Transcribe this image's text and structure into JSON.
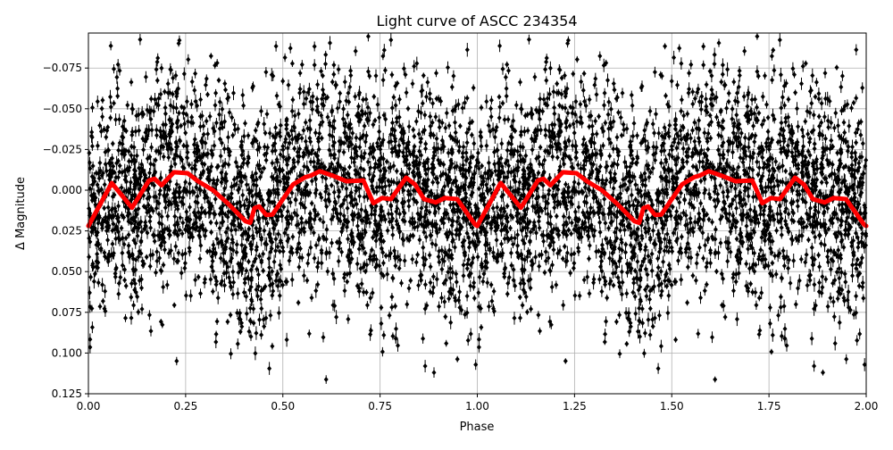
{
  "chart_data": {
    "type": "scatter",
    "title": "Light curve of ASCC 234354",
    "xlabel": "Phase",
    "ylabel": "Δ Magnitude",
    "xlim": [
      0,
      2
    ],
    "ylim": [
      0.125,
      -0.0965
    ],
    "y_inverted": true,
    "grid": true,
    "x_ticks": [
      "0.00",
      "0.25",
      "0.50",
      "0.75",
      "1.00",
      "1.25",
      "1.50",
      "1.75",
      "2.00"
    ],
    "x_tick_values": [
      0,
      0.25,
      0.5,
      0.75,
      1,
      1.25,
      1.5,
      1.75,
      2
    ],
    "y_ticks": [
      "−0.075",
      "−0.050",
      "−0.025",
      "0.000",
      "0.025",
      "0.050",
      "0.075",
      "0.100",
      "0.125"
    ],
    "y_tick_values": [
      -0.075,
      -0.05,
      -0.025,
      0,
      0.025,
      0.05,
      0.075,
      0.1,
      0.125
    ],
    "colors": {
      "points": "#000000",
      "model": "#ff0000",
      "grid": "#b0b0b0"
    },
    "observations": {
      "marker": "diamond",
      "error_bars": true,
      "scatter_around_model": 0.04
    },
    "model_curve": {
      "x": [
        0,
        0.06,
        0.112,
        0.156,
        0.17,
        0.188,
        0.22,
        0.255,
        0.282,
        0.32,
        0.358,
        0.404,
        0.416,
        0.427,
        0.439,
        0.457,
        0.473,
        0.526,
        0.558,
        0.572,
        0.595,
        0.627,
        0.664,
        0.707,
        0.733,
        0.755,
        0.778,
        0.817,
        0.84,
        0.863,
        0.893,
        0.916,
        0.948,
        0.994,
        1,
        1.06,
        1.112,
        1.156,
        1.17,
        1.188,
        1.22,
        1.255,
        1.282,
        1.32,
        1.358,
        1.404,
        1.416,
        1.427,
        1.439,
        1.457,
        1.473,
        1.526,
        1.558,
        1.572,
        1.595,
        1.627,
        1.664,
        1.707,
        1.733,
        1.755,
        1.778,
        1.817,
        1.84,
        1.863,
        1.893,
        1.916,
        1.948,
        1.994,
        2
      ],
      "y": [
        0.022,
        -0.0044,
        0.0108,
        -0.006,
        -0.007,
        -0.003,
        -0.011,
        -0.0104,
        -0.0055,
        0,
        0.008,
        0.019,
        0.02,
        0.011,
        0.01,
        0.0152,
        0.015,
        -0.0035,
        -0.008,
        -0.009,
        -0.0117,
        -0.009,
        -0.0055,
        -0.006,
        0.008,
        0.0048,
        0.0055,
        -0.0077,
        -0.0035,
        0.0055,
        0.0075,
        0.0048,
        0.0055,
        0.021,
        0.022,
        -0.0044,
        0.0108,
        -0.006,
        -0.007,
        -0.003,
        -0.011,
        -0.0104,
        -0.0055,
        0,
        0.008,
        0.019,
        0.02,
        0.011,
        0.01,
        0.0152,
        0.015,
        -0.0035,
        -0.008,
        -0.009,
        -0.0117,
        -0.009,
        -0.0055,
        -0.006,
        0.008,
        0.0048,
        0.0055,
        -0.0077,
        -0.0035,
        0.0055,
        0.0075,
        0.0048,
        0.0055,
        0.021,
        0.022
      ]
    }
  }
}
